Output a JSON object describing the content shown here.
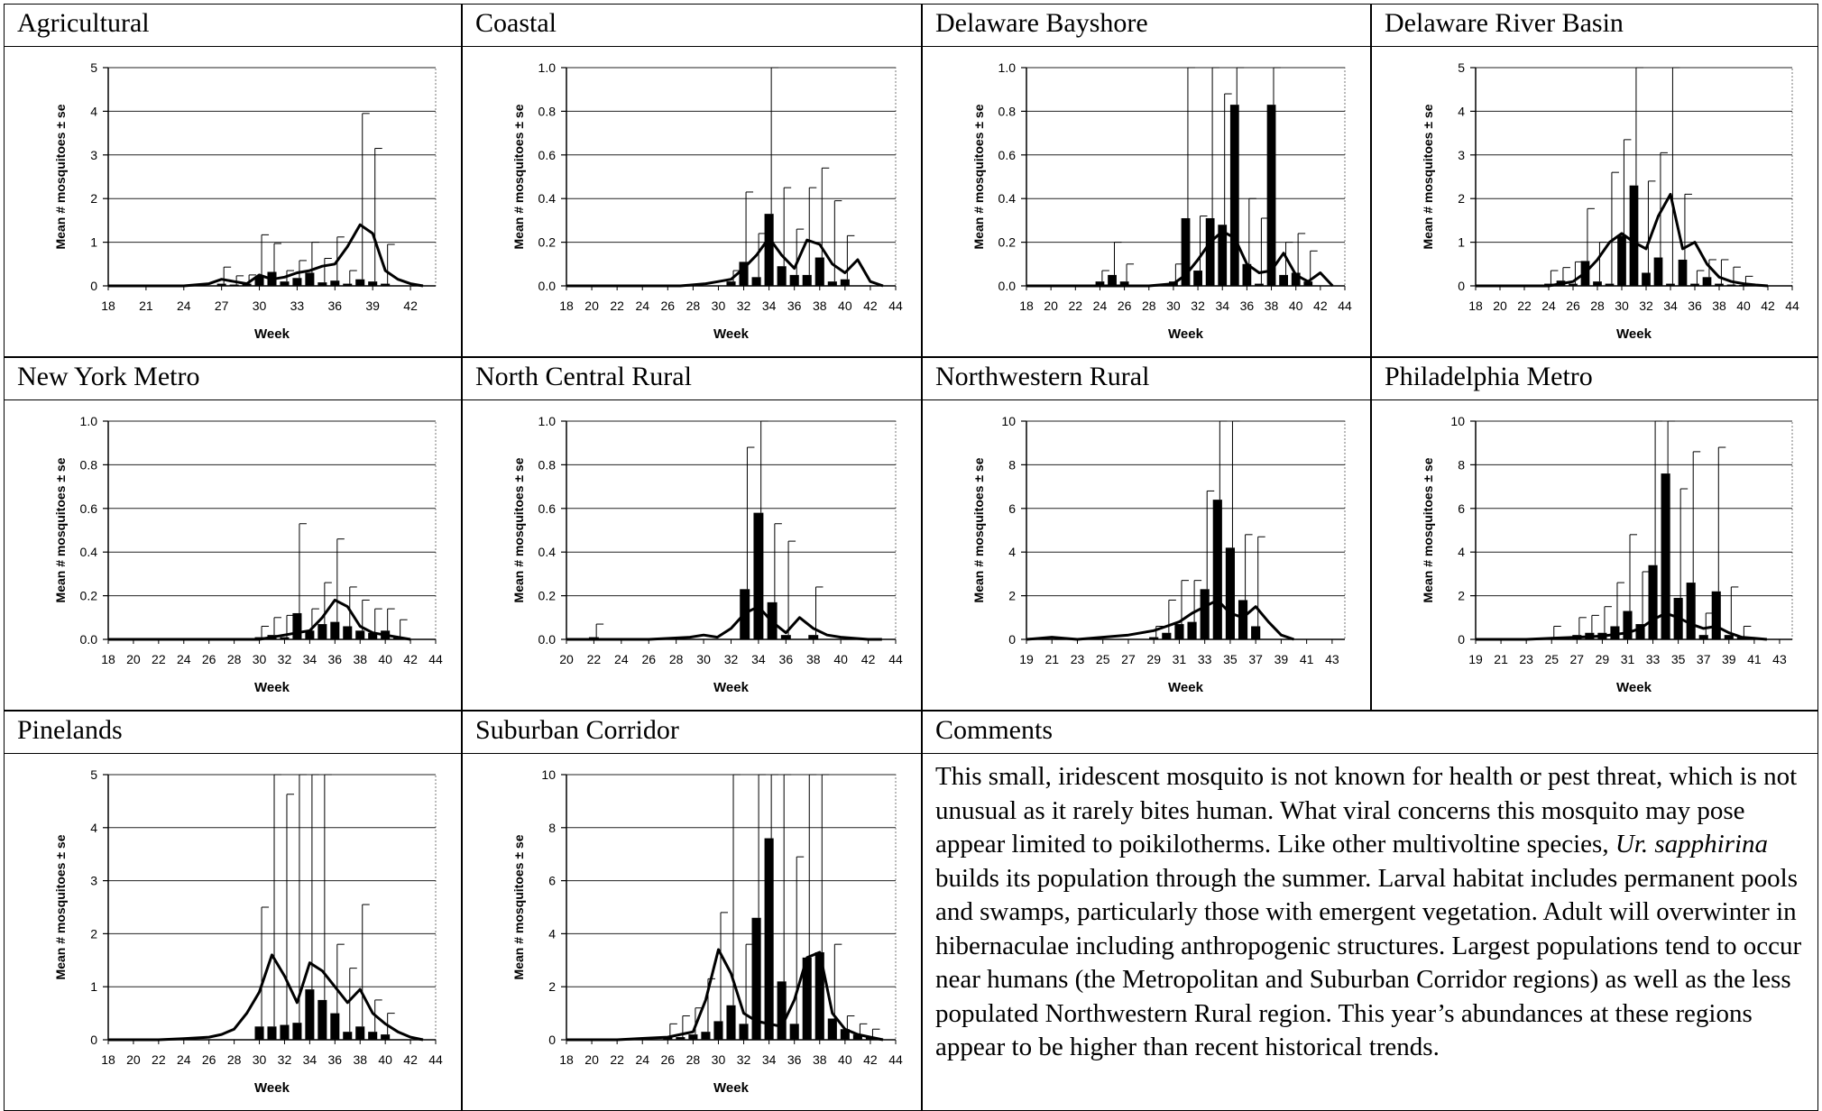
{
  "comments": {
    "title": "Comments",
    "text_1": "This small, iridescent mosquito is not known for health or pest threat, which is not unusual as it rarely bites human. What viral concerns this mosquito may pose appear limited to poikilotherms. Like other multivoltine species, ",
    "species": "Ur. sapphirina",
    "text_2": " builds its population through the summer.  Larval habitat includes permanent pools and swamps, particularly those with emergent vegetation. Adult will overwinter in hibernaculae including anthropogenic structures. Largest populations tend to occur near humans (the Metropolitan and Suburban Corridor regions) as well as the less populated Northwestern Rural region. This year’s abundances at these regions appear to be higher than recent historical trends."
  },
  "chart_data": [
    {
      "title": "Agricultural",
      "type": "bar",
      "xlabel": "Week",
      "ylabel": "Mean # mosquitoes ± se",
      "ylim": [
        0,
        5
      ],
      "yticks": [
        "0",
        "1",
        "2",
        "3",
        "4",
        "5"
      ],
      "grid": true,
      "xlim": [
        18,
        44
      ],
      "xticks": [
        18,
        21,
        24,
        27,
        30,
        33,
        36,
        39,
        42
      ],
      "bars": {
        "x": [
          27,
          28,
          29,
          30,
          31,
          32,
          33,
          34,
          35,
          36,
          37,
          38,
          39,
          40
        ],
        "values": [
          0.05,
          0.03,
          0.05,
          0.22,
          0.32,
          0.1,
          0.18,
          0.3,
          0.08,
          0.12,
          0.05,
          0.15,
          0.1,
          0.05
        ],
        "err": [
          0.38,
          0.2,
          0.2,
          0.95,
          0.65,
          0.25,
          0.4,
          0.7,
          0.55,
          1.0,
          0.3,
          3.8,
          3.05,
          0.9
        ]
      },
      "line": {
        "x": [
          18,
          20,
          22,
          24,
          26,
          27,
          28,
          29,
          30,
          31,
          32,
          33,
          34,
          35,
          36,
          37,
          38,
          39,
          40,
          41,
          42,
          43
        ],
        "values": [
          0,
          0,
          0,
          0,
          0.05,
          0.15,
          0.1,
          0.05,
          0.25,
          0.15,
          0.2,
          0.3,
          0.35,
          0.45,
          0.5,
          0.9,
          1.4,
          1.2,
          0.35,
          0.15,
          0.05,
          0
        ]
      }
    },
    {
      "title": "Coastal",
      "type": "bar",
      "xlabel": "Week",
      "ylabel": "Mean # mosquitoes ± se",
      "ylim": [
        0,
        1.0
      ],
      "yticks": [
        "0.0",
        "0.2",
        "0.4",
        "0.6",
        "0.8",
        "1.0"
      ],
      "grid": true,
      "xlim": [
        18,
        44
      ],
      "xticks": [
        18,
        20,
        22,
        24,
        26,
        28,
        30,
        32,
        34,
        36,
        38,
        40,
        42,
        44
      ],
      "bars": {
        "x": [
          31,
          32,
          33,
          34,
          35,
          36,
          37,
          38,
          39,
          40
        ],
        "values": [
          0.02,
          0.11,
          0.04,
          0.33,
          0.09,
          0.05,
          0.05,
          0.13,
          0.02,
          0.03
        ],
        "err": [
          0.05,
          0.32,
          0.2,
          0.93,
          0.36,
          0.21,
          0.4,
          0.41,
          0.37,
          0.2
        ]
      },
      "line": {
        "x": [
          18,
          24,
          27,
          29,
          30,
          31,
          32,
          33,
          34,
          35,
          36,
          37,
          38,
          39,
          40,
          41,
          42,
          43
        ],
        "values": [
          0,
          0,
          0,
          0.01,
          0.02,
          0.03,
          0.08,
          0.14,
          0.22,
          0.14,
          0.08,
          0.21,
          0.19,
          0.1,
          0.06,
          0.12,
          0.02,
          0
        ]
      }
    },
    {
      "title": "Delaware Bayshore",
      "type": "bar",
      "xlabel": "Week",
      "ylabel": "Mean # mosquitoes ± se",
      "ylim": [
        0,
        1.0
      ],
      "yticks": [
        "0.0",
        "0.2",
        "0.4",
        "0.6",
        "0.8",
        "1.0"
      ],
      "grid": true,
      "xlim": [
        18,
        44
      ],
      "xticks": [
        18,
        20,
        22,
        24,
        26,
        28,
        30,
        32,
        34,
        36,
        38,
        40,
        42,
        44
      ],
      "bars": {
        "x": [
          24,
          25,
          26,
          30,
          31,
          32,
          33,
          34,
          35,
          36,
          37,
          38,
          39,
          40,
          41
        ],
        "values": [
          0.02,
          0.05,
          0.02,
          0.02,
          0.31,
          0.07,
          0.31,
          0.28,
          0.83,
          0.1,
          0.01,
          0.83,
          0.05,
          0.06,
          0.02
        ],
        "err": [
          0.05,
          0.15,
          0.08,
          0.08,
          0.75,
          0.25,
          1.0,
          0.6,
          1.0,
          0.3,
          0.3,
          0.83,
          0.15,
          0.18,
          0.14
        ]
      },
      "line": {
        "x": [
          18,
          24,
          26,
          28,
          30,
          31,
          32,
          33,
          34,
          35,
          36,
          37,
          38,
          39,
          40,
          41,
          42,
          43
        ],
        "values": [
          0,
          0,
          0,
          0,
          0.01,
          0.05,
          0.12,
          0.2,
          0.25,
          0.22,
          0.1,
          0.06,
          0.07,
          0.15,
          0.05,
          0.02,
          0.06,
          0
        ]
      }
    },
    {
      "title": "Delaware River Basin",
      "type": "bar",
      "xlabel": "Week",
      "ylabel": "Mean # mosquitoes ± se",
      "ylim": [
        0,
        5
      ],
      "yticks": [
        "0",
        "1",
        "2",
        "3",
        "4",
        "5"
      ],
      "grid": true,
      "xlim": [
        18,
        44
      ],
      "xticks": [
        18,
        20,
        22,
        24,
        26,
        28,
        30,
        32,
        34,
        36,
        38,
        40,
        42,
        44
      ],
      "bars": {
        "x": [
          24,
          25,
          26,
          27,
          28,
          29,
          30,
          31,
          32,
          33,
          34,
          35,
          36,
          37,
          38,
          39,
          40
        ],
        "values": [
          0.05,
          0.12,
          0.05,
          0.57,
          0.1,
          0.05,
          1.15,
          2.3,
          0.3,
          0.65,
          0.05,
          0.6,
          0.05,
          0.2,
          0.05,
          0.03,
          0.02
        ],
        "err": [
          0.3,
          0.3,
          0.5,
          1.2,
          0.9,
          2.55,
          2.2,
          3.5,
          2.1,
          2.4,
          5.0,
          1.5,
          0.3,
          0.4,
          0.55,
          0.4,
          0.2
        ]
      },
      "line": {
        "x": [
          18,
          20,
          22,
          24,
          25,
          26,
          27,
          28,
          29,
          30,
          31,
          32,
          33,
          34,
          35,
          36,
          37,
          38,
          39,
          40,
          41,
          42
        ],
        "values": [
          0,
          0,
          0,
          0,
          0.05,
          0.1,
          0.3,
          0.6,
          1.0,
          1.2,
          1.0,
          0.85,
          1.6,
          2.1,
          0.85,
          1.0,
          0.5,
          0.2,
          0.1,
          0.05,
          0.02,
          0
        ]
      }
    },
    {
      "title": "New York Metro",
      "type": "bar",
      "xlabel": "Week",
      "ylabel": "Mean # mosquitoes ± se",
      "ylim": [
        0,
        1.0
      ],
      "yticks": [
        "0.0",
        "0.2",
        "0.4",
        "0.6",
        "0.8",
        "1.0"
      ],
      "grid": true,
      "xlim": [
        18,
        44
      ],
      "xticks": [
        18,
        20,
        22,
        24,
        26,
        28,
        30,
        32,
        34,
        36,
        38,
        40,
        42,
        44
      ],
      "bars": {
        "x": [
          30,
          31,
          32,
          33,
          34,
          35,
          36,
          37,
          38,
          39,
          40,
          41
        ],
        "values": [
          0.01,
          0.02,
          0.01,
          0.12,
          0.04,
          0.07,
          0.08,
          0.06,
          0.04,
          0.03,
          0.04,
          0.01
        ],
        "err": [
          0.05,
          0.08,
          0.1,
          0.41,
          0.1,
          0.19,
          0.38,
          0.18,
          0.14,
          0.11,
          0.1,
          0.08
        ]
      },
      "line": {
        "x": [
          18,
          26,
          30,
          31,
          32,
          33,
          34,
          35,
          36,
          37,
          38,
          39,
          40,
          41,
          42
        ],
        "values": [
          0,
          0,
          0,
          0.01,
          0.02,
          0.03,
          0.04,
          0.1,
          0.18,
          0.15,
          0.06,
          0.03,
          0.02,
          0.01,
          0
        ]
      }
    },
    {
      "title": "North Central Rural",
      "type": "bar",
      "xlabel": "Week",
      "ylabel": "Mean # mosquitoes ± se",
      "ylim": [
        0,
        1.0
      ],
      "yticks": [
        "0.0",
        "0.2",
        "0.4",
        "0.6",
        "0.8",
        "1.0"
      ],
      "grid": true,
      "xlim": [
        20,
        44
      ],
      "xticks": [
        20,
        22,
        24,
        26,
        28,
        30,
        32,
        34,
        36,
        38,
        40,
        42,
        44
      ],
      "bars": {
        "x": [
          22,
          33,
          34,
          35,
          36,
          38
        ],
        "values": [
          0.01,
          0.23,
          0.58,
          0.17,
          0.02,
          0.02
        ],
        "err": [
          0.06,
          0.65,
          1.0,
          0.36,
          0.43,
          0.22
        ]
      },
      "line": {
        "x": [
          20,
          26,
          29,
          30,
          31,
          32,
          33,
          34,
          35,
          36,
          37,
          38,
          39,
          40,
          42,
          43
        ],
        "values": [
          0,
          0,
          0.01,
          0.02,
          0.01,
          0.05,
          0.12,
          0.15,
          0.08,
          0.03,
          0.1,
          0.05,
          0.02,
          0.01,
          0,
          0
        ]
      }
    },
    {
      "title": "Northwestern Rural",
      "type": "bar",
      "xlabel": "Week",
      "ylabel": "Mean # mosquitoes ± se",
      "ylim": [
        0,
        10
      ],
      "yticks": [
        "0",
        "2",
        "4",
        "6",
        "8",
        "10"
      ],
      "grid": true,
      "xlim": [
        19,
        44
      ],
      "xticks": [
        19,
        21,
        23,
        25,
        27,
        29,
        31,
        33,
        35,
        37,
        39,
        41,
        43
      ],
      "bars": {
        "x": [
          29,
          30,
          31,
          32,
          33,
          34,
          35,
          36,
          37
        ],
        "values": [
          0.1,
          0.3,
          0.7,
          0.8,
          2.3,
          6.4,
          4.2,
          1.8,
          0.6
        ],
        "err": [
          0.5,
          1.5,
          2.0,
          1.9,
          4.5,
          9.8,
          8.7,
          3.0,
          4.1
        ]
      },
      "line": {
        "x": [
          19,
          21,
          23,
          25,
          27,
          29,
          30,
          31,
          32,
          33,
          34,
          35,
          36,
          37,
          38,
          39,
          40
        ],
        "values": [
          0,
          0.1,
          0,
          0.1,
          0.2,
          0.4,
          0.6,
          0.8,
          1.2,
          1.5,
          1.8,
          1.2,
          1.0,
          1.5,
          0.8,
          0.2,
          0
        ]
      }
    },
    {
      "title": "Philadelphia Metro",
      "type": "bar",
      "xlabel": "Week",
      "ylabel": "Mean # mosquitoes ± se",
      "ylim": [
        0,
        10
      ],
      "yticks": [
        "0",
        "2",
        "4",
        "6",
        "8",
        "10"
      ],
      "grid": true,
      "xlim": [
        19,
        44
      ],
      "xticks": [
        19,
        21,
        23,
        25,
        27,
        29,
        31,
        33,
        35,
        37,
        39,
        41,
        43
      ],
      "bars": {
        "x": [
          25,
          27,
          28,
          29,
          30,
          31,
          32,
          33,
          34,
          35,
          36,
          37,
          38,
          39,
          40
        ],
        "values": [
          0.1,
          0.2,
          0.3,
          0.3,
          0.6,
          1.3,
          0.7,
          3.4,
          7.6,
          1.9,
          2.6,
          0.2,
          2.2,
          0.2,
          0.1
        ],
        "err": [
          0.5,
          0.8,
          0.8,
          1.2,
          2.0,
          3.5,
          2.4,
          10.0,
          10.0,
          5.0,
          6.0,
          1.0,
          6.6,
          2.2,
          0.5
        ]
      },
      "line": {
        "x": [
          19,
          23,
          25,
          27,
          29,
          31,
          32,
          33,
          34,
          35,
          36,
          37,
          38,
          39,
          40,
          41,
          42
        ],
        "values": [
          0,
          0,
          0.05,
          0.1,
          0.15,
          0.3,
          0.5,
          0.9,
          1.2,
          1.0,
          0.7,
          0.5,
          0.6,
          0.3,
          0.1,
          0.05,
          0
        ]
      }
    },
    {
      "title": "Pinelands",
      "type": "bar",
      "xlabel": "Week",
      "ylabel": "Mean # mosquitoes ± se",
      "ylim": [
        0,
        5
      ],
      "yticks": [
        "0",
        "1",
        "2",
        "3",
        "4",
        "5"
      ],
      "grid": true,
      "xlim": [
        18,
        44
      ],
      "xticks": [
        18,
        20,
        22,
        24,
        26,
        28,
        30,
        32,
        34,
        36,
        38,
        40,
        42,
        44
      ],
      "bars": {
        "x": [
          30,
          31,
          32,
          33,
          34,
          35,
          36,
          37,
          38,
          39,
          40
        ],
        "values": [
          0.25,
          0.25,
          0.28,
          0.32,
          0.95,
          0.75,
          0.5,
          0.15,
          0.25,
          0.15,
          0.1
        ],
        "err": [
          2.25,
          5.0,
          4.35,
          5.0,
          5.0,
          4.7,
          1.3,
          1.2,
          2.3,
          0.6,
          0.4
        ]
      },
      "line": {
        "x": [
          18,
          22,
          24,
          26,
          27,
          28,
          29,
          30,
          31,
          32,
          33,
          34,
          35,
          36,
          37,
          38,
          39,
          40,
          41,
          42,
          43
        ],
        "values": [
          0,
          0,
          0.02,
          0.05,
          0.1,
          0.2,
          0.5,
          0.9,
          1.6,
          1.2,
          0.7,
          1.45,
          1.3,
          1.0,
          0.7,
          0.95,
          0.5,
          0.3,
          0.15,
          0.05,
          0
        ]
      }
    },
    {
      "title": "Suburban Corridor",
      "type": "bar",
      "xlabel": "Week",
      "ylabel": "Mean # mosquitoes ± se",
      "ylim": [
        0,
        10
      ],
      "yticks": [
        "0",
        "2",
        "4",
        "6",
        "8",
        "10"
      ],
      "grid": true,
      "xlim": [
        18,
        44
      ],
      "xticks": [
        18,
        20,
        22,
        24,
        26,
        28,
        30,
        32,
        34,
        36,
        38,
        40,
        42,
        44
      ],
      "bars": {
        "x": [
          26,
          27,
          28,
          29,
          30,
          31,
          32,
          33,
          34,
          35,
          36,
          37,
          38,
          39,
          40,
          41,
          42
        ],
        "values": [
          0.1,
          0.1,
          0.2,
          0.3,
          0.7,
          1.3,
          0.6,
          4.6,
          7.6,
          2.2,
          0.6,
          3.1,
          3.3,
          0.8,
          0.4,
          0.2,
          0.1
        ],
        "err": [
          0.5,
          0.8,
          1.0,
          2.0,
          4.1,
          9.3,
          3.0,
          10.0,
          10.0,
          8.4,
          6.3,
          10.0,
          10.0,
          2.8,
          0.5,
          0.4,
          0.3
        ]
      },
      "line": {
        "x": [
          18,
          22,
          24,
          26,
          28,
          29,
          30,
          31,
          32,
          33,
          34,
          35,
          36,
          37,
          38,
          39,
          40,
          41,
          42,
          43
        ],
        "values": [
          0,
          0,
          0.05,
          0.1,
          0.3,
          1.5,
          3.4,
          2.5,
          1.0,
          0.7,
          0.6,
          0.5,
          1.5,
          3.1,
          3.3,
          1.0,
          0.4,
          0.2,
          0.1,
          0
        ]
      }
    }
  ]
}
